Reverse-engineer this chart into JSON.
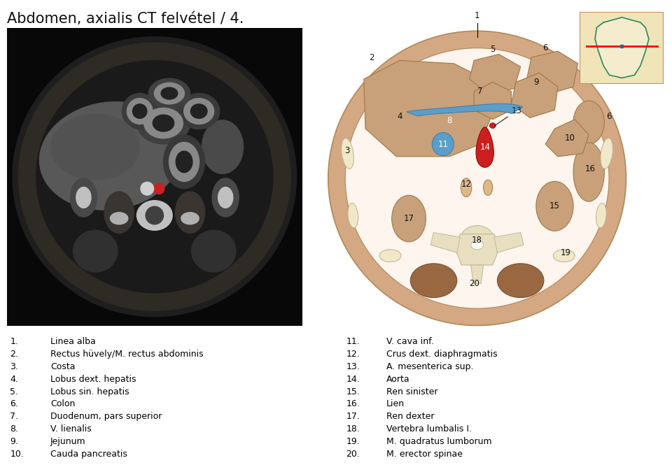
{
  "title": "Abdomen, axialis CT felvétel / 4.",
  "background_color": "#ffffff",
  "legend_left": [
    [
      "1.",
      "Linea alba"
    ],
    [
      "2.",
      "Rectus hüvely/M. rectus abdominis"
    ],
    [
      "3.",
      "Costa"
    ],
    [
      "4.",
      "Lobus dext. hepatis"
    ],
    [
      "5.",
      "Lobus sin. hepatis"
    ],
    [
      "6.",
      "Colon"
    ],
    [
      "7.",
      "Duodenum, pars superior"
    ],
    [
      "8.",
      "V. lienalis"
    ],
    [
      "9.",
      "Jejunum"
    ],
    [
      "10.",
      "Cauda pancreatis"
    ]
  ],
  "legend_right": [
    [
      "11.",
      "V. cava inf."
    ],
    [
      "12.",
      "Crus dext. diaphragmatis"
    ],
    [
      "13.",
      "A. mesenterica sup."
    ],
    [
      "14.",
      "Aorta"
    ],
    [
      "15.",
      "Ren sinister"
    ],
    [
      "16.",
      "Lien"
    ],
    [
      "17.",
      "Ren dexter"
    ],
    [
      "18.",
      "Vertebra lumbalis I."
    ],
    [
      "19.",
      "M. quadratus lumborum"
    ],
    [
      "20.",
      "M. erector spinae"
    ]
  ],
  "skin_color": "#d4a882",
  "skin_border": "#b08858",
  "organ_light": "#ddb98a",
  "organ_fill": "#c8a07a",
  "organ_border": "#a07848",
  "blue_vessel": "#5b9ec9",
  "red_vessel": "#cc2020",
  "bone_color": "#e8dfc0",
  "bone_border": "#c0b898",
  "muscle_dark": "#9a6840",
  "cream_color": "#f0e8c8",
  "inner_bg": "#fdf5ee",
  "label_color": "#222222"
}
